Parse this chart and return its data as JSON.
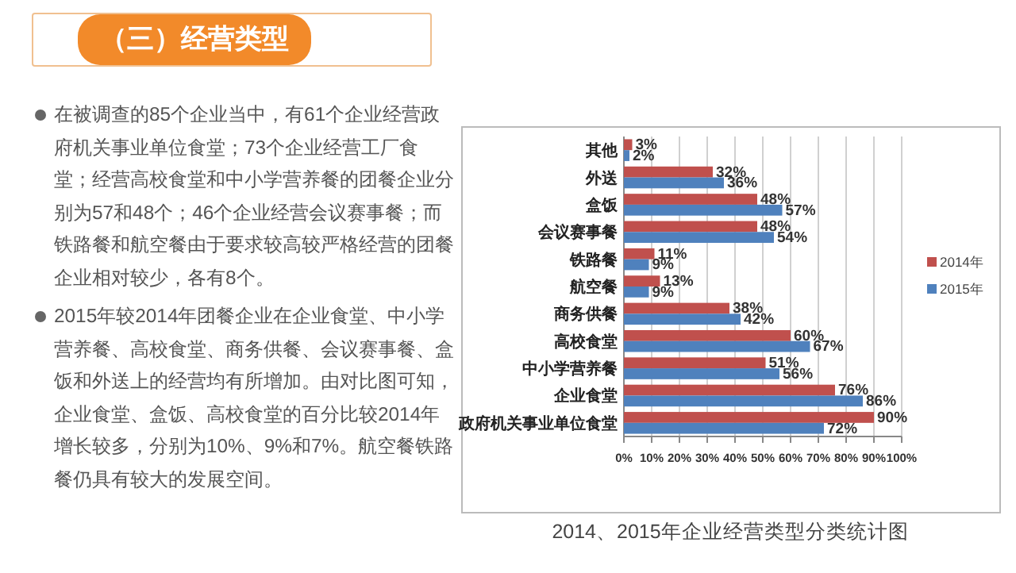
{
  "chart_data": [
    {
      "type": "other",
      "title": "（三）经营类型",
      "annotations": [
        "在被调查的85个企业当中，有61个企业经营政府机关事业单位食堂；73个企业经营工厂食堂；经营高校食堂和中小学营养餐的团餐企业分别为57和48个；46个企业经营会议赛事餐；而铁路餐和航空餐由于要求较高较严格经营的团餐企业相对较少，各有8个。",
        "2015年较2014年团餐企业在企业食堂、中小学营养餐、高校食堂、商务供餐、会议赛事餐、盒饭和外送上的经营均有所增加。由对比图可知，企业食堂、盒饭、高校食堂的百分比较2014年增长较多，分别为10%、9%和7%。航空餐铁路餐仍具有较大的发展空间。"
      ]
    },
    {
      "type": "bar",
      "orientation": "horizontal",
      "title": "2014、2015年企业经营类型分类统计图",
      "categories": [
        "其他",
        "外送",
        "盒饭",
        "会议赛事餐",
        "铁路餐",
        "航空餐",
        "商务供餐",
        "高校食堂",
        "中小学营养餐",
        "企业食堂",
        "政府机关事业单位食堂"
      ],
      "series": [
        {
          "name": "2014年",
          "color": "#c0504d",
          "values": [
            3,
            32,
            48,
            48,
            11,
            13,
            38,
            60,
            51,
            76,
            90
          ],
          "value_labels": [
            "3%",
            "32%",
            "48%",
            "48%",
            "11%",
            "13%",
            "38%",
            "60%",
            "51%",
            "76%",
            "90%"
          ]
        },
        {
          "name": "2015年",
          "color": "#4f81bd",
          "values": [
            2,
            36,
            57,
            54,
            9,
            9,
            42,
            67,
            56,
            86,
            72
          ],
          "value_labels": [
            "2%",
            "36%",
            "57%",
            "54%",
            "9%",
            "9%",
            "42%",
            "67%",
            "56%",
            "86%",
            "72%"
          ]
        }
      ],
      "xlim": [
        0,
        100
      ],
      "xticks": [
        {
          "value": 0,
          "label": "0%"
        },
        {
          "value": 10,
          "label": "10%"
        },
        {
          "value": 20,
          "label": "20%"
        },
        {
          "value": 30,
          "label": "30%"
        },
        {
          "value": 40,
          "label": "40%"
        },
        {
          "value": 50,
          "label": "50%"
        },
        {
          "value": 60,
          "label": "60%"
        },
        {
          "value": 70,
          "label": "70%"
        },
        {
          "value": 80,
          "label": "80%"
        },
        {
          "value": 90,
          "label": "90%"
        },
        {
          "value": 100,
          "label": "100%"
        }
      ],
      "grid": "x",
      "legend": "right"
    }
  ]
}
